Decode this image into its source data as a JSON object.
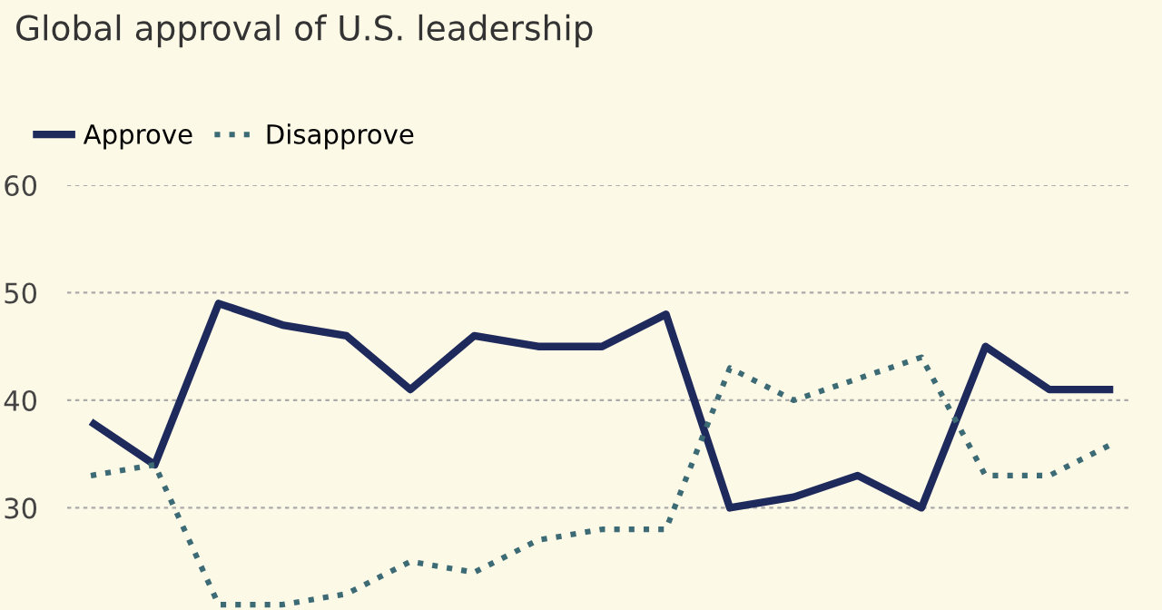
{
  "chart_data": {
    "type": "line",
    "title": "Global approval of U.S. leadership",
    "categories": [
      null,
      null,
      null,
      null,
      null,
      null,
      null,
      null,
      null,
      null,
      null,
      null,
      null,
      null,
      null,
      null,
      null
    ],
    "series": [
      {
        "name": "Approve",
        "color": "#1f2a5c",
        "line_style": "solid",
        "values": [
          38,
          34,
          49,
          47,
          46,
          41,
          46,
          45,
          45,
          48,
          30,
          31,
          33,
          30,
          45,
          41,
          41
        ]
      },
      {
        "name": "Disapprove",
        "color": "#3d6b75",
        "line_style": "dotted",
        "values": [
          33,
          34,
          21,
          21,
          22,
          25,
          24,
          27,
          28,
          28,
          43,
          40,
          42,
          44,
          33,
          33,
          36
        ]
      }
    ],
    "ylim": [
      20.5,
      60
    ],
    "yticks": [
      30,
      40,
      50,
      60
    ],
    "grid": "y",
    "legend": "top left",
    "marker": "none",
    "tick_labels": "y"
  }
}
